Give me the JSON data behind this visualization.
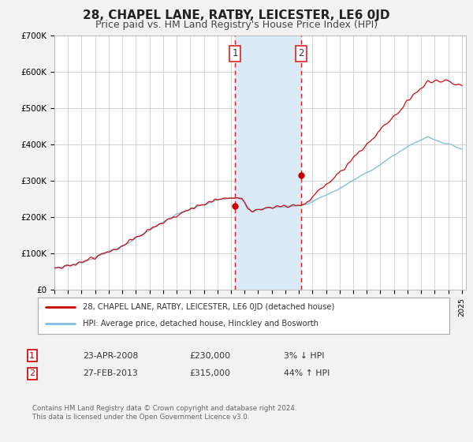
{
  "title": "28, CHAPEL LANE, RATBY, LEICESTER, LE6 0JD",
  "subtitle": "Price paid vs. HM Land Registry's House Price Index (HPI)",
  "title_fontsize": 11,
  "subtitle_fontsize": 9,
  "background_color": "#f2f2f2",
  "plot_bg_color": "#ffffff",
  "hpi_color": "#7bbde0",
  "price_color": "#cc0000",
  "ylim": [
    0,
    700000
  ],
  "yticks": [
    0,
    100000,
    200000,
    300000,
    400000,
    500000,
    600000,
    700000
  ],
  "ytick_labels": [
    "£0",
    "£100K",
    "£200K",
    "£300K",
    "£400K",
    "£500K",
    "£600K",
    "£700K"
  ],
  "sale1_date": 2008.31,
  "sale1_price": 230000,
  "sale2_date": 2013.16,
  "sale2_price": 315000,
  "shaded_region_color": "#daeaf7",
  "dashed_line_color": "#dd2222",
  "legend_label_price": "28, CHAPEL LANE, RATBY, LEICESTER, LE6 0JD (detached house)",
  "legend_label_hpi": "HPI: Average price, detached house, Hinckley and Bosworth",
  "footnote1": "Contains HM Land Registry data © Crown copyright and database right 2024.",
  "footnote2": "This data is licensed under the Open Government Licence v3.0.",
  "table_row1_num": "1",
  "table_row1_date": "23-APR-2008",
  "table_row1_price": "£230,000",
  "table_row1_hpi": "3% ↓ HPI",
  "table_row2_num": "2",
  "table_row2_date": "27-FEB-2013",
  "table_row2_price": "£315,000",
  "table_row2_hpi": "44% ↑ HPI"
}
